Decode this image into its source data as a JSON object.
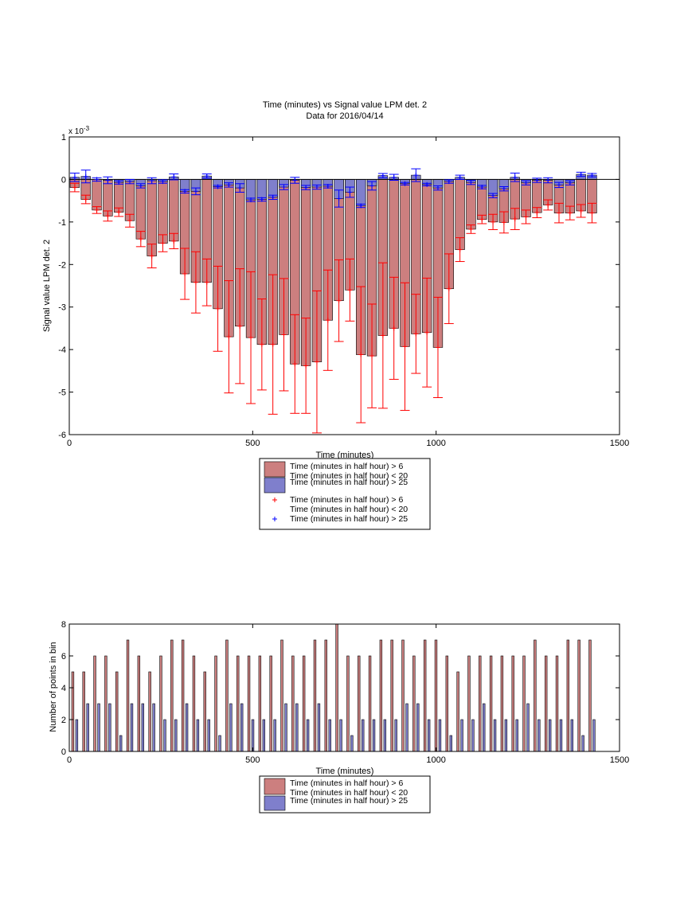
{
  "colors": {
    "red_fill": "#cc7f7f",
    "blue_fill": "#7f7fcc",
    "red_mark": "#ff0000",
    "blue_mark": "#0000ff",
    "axis": "#000000"
  },
  "chart_data": [
    {
      "type": "bar",
      "title": "Time (minutes) vs Signal value LPM det. 2",
      "subtitle": "Data for 2016/04/14",
      "xlabel": "Time (minutes)",
      "ylabel": "Signal value LPM det. 2",
      "y_exponent": "x 10",
      "y_exponent_power": "-3",
      "xlim": [
        0,
        1500
      ],
      "ylim": [
        -6,
        1
      ],
      "xticks": [
        "0",
        "500",
        "1000",
        "1500"
      ],
      "yticks": [
        "1",
        "0",
        "-1",
        "-2",
        "-3",
        "-4",
        "-5",
        "-6"
      ],
      "grid": false,
      "legend_position": "bottom-center",
      "legend": [
        {
          "line1": "Time (minutes in half hour) > 6",
          "line2": "Time (minutes in half hour) < 20",
          "kind": "bar",
          "series": "red"
        },
        {
          "line1": "Time (minutes in half hour) > 25",
          "line2": "",
          "kind": "bar",
          "series": "blue"
        },
        {
          "line1": "Time (minutes in half hour) > 6",
          "line2": "Time (minutes in half hour) < 20",
          "kind": "marker",
          "series": "red"
        },
        {
          "line1": "Time (minutes in half hour) > 25",
          "line2": "",
          "kind": "marker",
          "series": "blue"
        }
      ],
      "x": [
        15,
        45,
        75,
        105,
        135,
        165,
        195,
        225,
        255,
        285,
        315,
        345,
        375,
        405,
        435,
        465,
        495,
        525,
        555,
        585,
        615,
        645,
        675,
        705,
        735,
        765,
        795,
        825,
        855,
        885,
        915,
        945,
        975,
        1005,
        1035,
        1065,
        1095,
        1125,
        1155,
        1185,
        1215,
        1245,
        1275,
        1305,
        1335,
        1365,
        1395,
        1425
      ],
      "series": [
        {
          "name": "Time (minutes in half hour) > 6 Time (minutes in half hour) < 20",
          "color": "red",
          "values": [
            -0.19,
            -0.47,
            -0.72,
            -0.86,
            -0.77,
            -0.97,
            -1.4,
            -1.8,
            -1.5,
            -1.45,
            -2.22,
            -2.42,
            -2.42,
            -3.04,
            -3.7,
            -3.45,
            -3.72,
            -3.88,
            -3.88,
            -3.65,
            -4.34,
            -4.38,
            -4.29,
            -3.31,
            -2.85,
            -2.6,
            -4.12,
            -4.15,
            -3.67,
            -3.5,
            -3.93,
            -3.63,
            -3.6,
            -3.95,
            -2.57,
            -1.65,
            -1.17,
            -0.94,
            -1.0,
            -1.01,
            -0.93,
            -0.88,
            -0.78,
            -0.6,
            -0.79,
            -0.79,
            -0.74,
            -0.79
          ],
          "error": [
            0.1,
            0.1,
            0.08,
            0.12,
            0.1,
            0.15,
            0.18,
            0.28,
            0.2,
            0.18,
            0.6,
            0.72,
            0.55,
            1.0,
            1.32,
            1.35,
            1.55,
            1.07,
            1.64,
            1.32,
            1.16,
            1.12,
            1.67,
            1.18,
            0.96,
            0.73,
            1.6,
            1.22,
            1.71,
            1.2,
            1.5,
            0.93,
            1.28,
            1.18,
            0.82,
            0.28,
            0.1,
            0.1,
            0.18,
            0.25,
            0.25,
            0.16,
            0.12,
            0.12,
            0.23,
            0.16,
            0.15,
            0.23
          ]
        },
        {
          "name": "Time (minutes in half hour) > 25",
          "color": "blue",
          "values": [
            0.05,
            0.07,
            0.0,
            -0.02,
            -0.07,
            -0.05,
            -0.15,
            -0.03,
            -0.05,
            0.06,
            -0.28,
            -0.28,
            0.08,
            -0.17,
            -0.13,
            -0.2,
            -0.48,
            -0.47,
            -0.42,
            -0.18,
            -0.02,
            -0.19,
            -0.18,
            -0.16,
            -0.45,
            -0.3,
            -0.62,
            -0.15,
            0.09,
            0.05,
            -0.1,
            0.1,
            -0.12,
            -0.2,
            -0.05,
            0.05,
            -0.07,
            -0.18,
            -0.38,
            -0.22,
            0.05,
            -0.08,
            -0.02,
            -0.02,
            -0.13,
            -0.08,
            0.12,
            0.1
          ],
          "error": [
            0.1,
            0.15,
            0.04,
            0.08,
            0.04,
            0.05,
            0.05,
            0.07,
            0.04,
            0.07,
            0.04,
            0.08,
            0.05,
            0.03,
            0.05,
            0.1,
            0.04,
            0.04,
            0.05,
            0.06,
            0.07,
            0.05,
            0.05,
            0.04,
            0.2,
            0.12,
            0.04,
            0.1,
            0.05,
            0.07,
            0.03,
            0.15,
            0.03,
            0.05,
            0.04,
            0.05,
            0.05,
            0.04,
            0.05,
            0.05,
            0.1,
            0.05,
            0.05,
            0.06,
            0.06,
            0.05,
            0.05,
            0.04
          ]
        }
      ]
    },
    {
      "type": "bar",
      "title": "",
      "xlabel": "Time (minutes)",
      "ylabel": "Number of points in bin",
      "xlim": [
        0,
        1500
      ],
      "ylim": [
        0,
        8
      ],
      "xticks": [
        "0",
        "500",
        "1000",
        "1500"
      ],
      "yticks": [
        "0",
        "2",
        "4",
        "6",
        "8"
      ],
      "grid": false,
      "legend_position": "bottom-center",
      "legend": [
        {
          "line1": "Time (minutes in half hour) > 6",
          "line2": "Time (minutes in half hour) < 20",
          "series": "red"
        },
        {
          "line1": "Time (minutes in half hour) > 25",
          "line2": "",
          "series": "blue"
        }
      ],
      "x": [
        15,
        45,
        75,
        105,
        135,
        165,
        195,
        225,
        255,
        285,
        315,
        345,
        375,
        405,
        435,
        465,
        495,
        525,
        555,
        585,
        615,
        645,
        675,
        705,
        735,
        765,
        795,
        825,
        855,
        885,
        915,
        945,
        975,
        1005,
        1035,
        1065,
        1095,
        1125,
        1155,
        1185,
        1215,
        1245,
        1275,
        1305,
        1335,
        1365,
        1395,
        1425
      ],
      "series": [
        {
          "name": "Time (minutes in half hour) > 6 Time (minutes in half hour) < 20",
          "color": "red",
          "values": [
            5,
            5,
            6,
            6,
            5,
            7,
            6,
            5,
            6,
            7,
            7,
            6,
            5,
            6,
            7,
            6,
            6,
            6,
            6,
            7,
            6,
            6,
            7,
            7,
            8,
            6,
            6,
            6,
            7,
            7,
            7,
            6,
            7,
            7,
            6,
            5,
            6,
            6,
            6,
            6,
            6,
            6,
            7,
            6,
            6,
            7,
            7,
            7
          ]
        },
        {
          "name": "Time (minutes in half hour) > 25",
          "color": "blue",
          "values": [
            2,
            3,
            3,
            3,
            1,
            3,
            3,
            3,
            2,
            2,
            3,
            2,
            2,
            1,
            3,
            3,
            2,
            2,
            2,
            3,
            3,
            2,
            3,
            2,
            2,
            1,
            2,
            2,
            2,
            2,
            3,
            3,
            2,
            2,
            1,
            2,
            2,
            3,
            2,
            2,
            2,
            3,
            2,
            2,
            2,
            2,
            1,
            2
          ]
        }
      ]
    }
  ]
}
